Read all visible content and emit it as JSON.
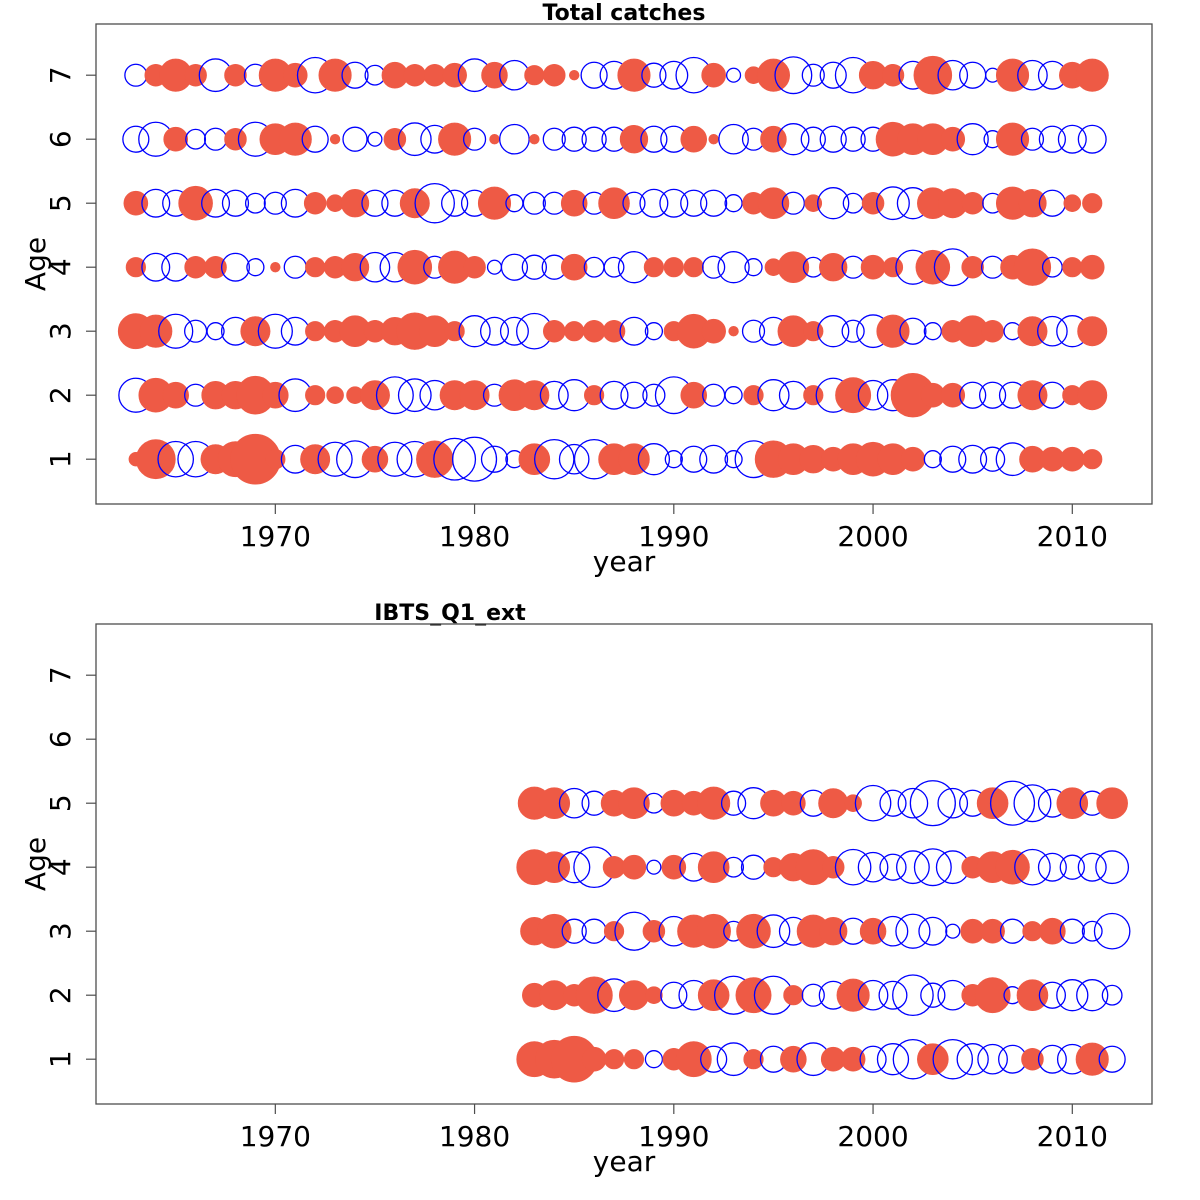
{
  "figure": {
    "legend": "none",
    "grid": false,
    "colors": {
      "positive_fill": "#ee5a45",
      "negative_stroke": "#0000ff",
      "frame": "#4d4d4d"
    }
  },
  "chart_data": [
    {
      "type": "scatter",
      "title": "Total catches",
      "xlabel": "year",
      "ylabel": "Age",
      "xlim": [
        1961,
        2014
      ],
      "ylim": [
        0.3,
        7.8
      ],
      "x_ticks": [
        1970,
        1980,
        1990,
        2000,
        2010
      ],
      "y_ticks": [
        1,
        2,
        3,
        4,
        5,
        6,
        7
      ],
      "years": [
        1963,
        1964,
        1965,
        1966,
        1967,
        1968,
        1969,
        1970,
        1971,
        1972,
        1973,
        1974,
        1975,
        1976,
        1977,
        1978,
        1979,
        1980,
        1981,
        1982,
        1983,
        1984,
        1985,
        1986,
        1987,
        1988,
        1989,
        1990,
        1991,
        1992,
        1993,
        1994,
        1995,
        1996,
        1997,
        1998,
        1999,
        2000,
        2001,
        2002,
        2003,
        2004,
        2005,
        2006,
        2007,
        2008,
        2009,
        2010,
        2011
      ],
      "series": [
        {
          "age": 1,
          "residuals": [
            0.2,
            1.6,
            -1.3,
            -1.3,
            0.9,
            1.3,
            2.6,
            0.4,
            -0.8,
            0.9,
            -1.2,
            -1.4,
            0.7,
            -1.2,
            -1.3,
            1.4,
            -1.8,
            -2.0,
            -0.7,
            -0.3,
            1.0,
            -1.6,
            -0.9,
            -1.6,
            1.0,
            1.0,
            -1.0,
            -0.3,
            -0.7,
            -0.8,
            -0.3,
            -1.4,
            1.4,
            1.0,
            0.8,
            0.6,
            1.0,
            1.2,
            1.0,
            0.6,
            -0.3,
            -0.7,
            -0.8,
            -0.6,
            -1.1,
            0.7,
            0.6,
            0.6,
            0.4
          ]
        },
        {
          "age": 2,
          "residuals": [
            -1.2,
            1.2,
            0.7,
            -0.5,
            0.8,
            0.8,
            1.5,
            0.7,
            -1.1,
            0.4,
            0.3,
            0.3,
            0.9,
            -1.4,
            -1.1,
            -0.9,
            0.9,
            0.9,
            -0.5,
            1.0,
            0.9,
            -0.8,
            -1.0,
            0.4,
            -0.8,
            -0.7,
            -0.5,
            -1.4,
            0.7,
            -0.5,
            -0.3,
            0.4,
            -1.0,
            -0.8,
            0.4,
            -1.2,
            1.3,
            -0.9,
            -1.0,
            2.0,
            0.6,
            0.6,
            -0.7,
            -0.7,
            -0.7,
            0.9,
            -0.7,
            0.4,
            0.9
          ]
        },
        {
          "age": 3,
          "residuals": [
            1.3,
            1.1,
            -1.2,
            -0.5,
            -0.3,
            -0.8,
            0.9,
            -1.2,
            -0.8,
            0.4,
            0.5,
            1.0,
            0.5,
            0.8,
            1.4,
            1.0,
            0.4,
            -1.0,
            -0.8,
            -0.8,
            -1.3,
            0.5,
            0.4,
            0.5,
            0.5,
            -0.8,
            -0.3,
            0.4,
            1.2,
            0.6,
            0.1,
            -0.5,
            -0.8,
            1.0,
            0.4,
            -1.0,
            -0.5,
            -1.1,
            1.1,
            -0.7,
            -0.3,
            0.5,
            1.0,
            0.5,
            -0.3,
            0.9,
            -0.9,
            -1.0,
            0.9
          ]
        },
        {
          "age": 4,
          "residuals": [
            0.4,
            -0.8,
            -0.8,
            0.5,
            0.5,
            -0.8,
            -0.3,
            0.1,
            -0.5,
            0.4,
            0.5,
            0.8,
            -0.9,
            -0.9,
            1.2,
            -0.5,
            1.1,
            0.5,
            -0.2,
            -0.7,
            -0.6,
            -0.6,
            0.7,
            -0.4,
            -0.4,
            -1.0,
            0.4,
            0.4,
            0.4,
            -0.5,
            -1.0,
            -0.3,
            0.3,
            1.0,
            -0.4,
            0.8,
            -0.5,
            0.6,
            0.4,
            -1.2,
            1.2,
            -1.4,
            0.5,
            -0.5,
            0.6,
            1.4,
            -0.4,
            0.4,
            0.6
          ]
        },
        {
          "age": 5,
          "residuals": [
            0.6,
            -0.8,
            -0.7,
            1.2,
            -0.8,
            -0.7,
            -0.4,
            -0.5,
            -0.8,
            0.5,
            0.3,
            0.8,
            -0.7,
            -0.7,
            0.9,
            -1.6,
            -0.7,
            -0.7,
            1.1,
            -0.3,
            -0.5,
            -0.5,
            0.7,
            -0.5,
            1.0,
            -0.5,
            -0.8,
            -0.8,
            -0.7,
            -0.7,
            -0.3,
            0.5,
            1.0,
            -0.5,
            0.3,
            -1.0,
            -0.4,
            0.5,
            -1.1,
            -1.0,
            1.0,
            0.9,
            0.5,
            -0.4,
            1.1,
            0.8,
            -0.7,
            0.3,
            0.4
          ]
        },
        {
          "age": 6,
          "residuals": [
            -0.7,
            -1.2,
            0.6,
            -0.4,
            -0.5,
            0.5,
            -1.2,
            1.0,
            1.1,
            -0.7,
            0.1,
            -0.6,
            -0.2,
            0.5,
            -1.1,
            -0.8,
            1.1,
            -0.5,
            0.1,
            -0.9,
            0.1,
            -0.5,
            -0.6,
            -0.6,
            -0.6,
            0.8,
            -0.7,
            -0.7,
            0.7,
            0.1,
            -0.9,
            -0.5,
            0.7,
            -1.0,
            -0.6,
            -0.7,
            -0.6,
            -0.6,
            1.2,
            1.0,
            1.0,
            0.6,
            -1.0,
            -0.3,
            1.1,
            -0.5,
            -0.7,
            -0.8,
            -0.8
          ]
        },
        {
          "age": 7,
          "residuals": [
            -0.5,
            0.5,
            1.1,
            0.5,
            -1.1,
            0.5,
            -0.5,
            1.1,
            0.6,
            -1.3,
            1.1,
            -0.7,
            -0.4,
            0.7,
            0.5,
            0.5,
            0.6,
            -1.1,
            0.7,
            -0.9,
            0.4,
            0.5,
            0.1,
            -0.7,
            -0.8,
            1.1,
            -0.6,
            -0.8,
            -1.3,
            0.6,
            -0.2,
            0.3,
            1.1,
            -1.4,
            -0.5,
            -0.7,
            -1.3,
            0.8,
            0.5,
            -0.8,
            1.5,
            -0.9,
            -0.7,
            -0.2,
            1.1,
            -0.9,
            -0.8,
            0.7,
            1.1
          ]
        }
      ]
    },
    {
      "type": "scatter",
      "title": "IBTS_Q1_ext",
      "xlabel": "year",
      "ylabel": "Age",
      "xlim": [
        1961,
        2014
      ],
      "ylim": [
        0.3,
        7.8
      ],
      "x_ticks": [
        1970,
        1980,
        1990,
        2000,
        2010
      ],
      "y_ticks": [
        1,
        2,
        3,
        4,
        5,
        6,
        7
      ],
      "years": [
        1983,
        1984,
        1985,
        1986,
        1987,
        1988,
        1989,
        1990,
        1991,
        1992,
        1993,
        1994,
        1995,
        1996,
        1997,
        1998,
        1999,
        2000,
        2001,
        2002,
        2003,
        2004,
        2005,
        2006,
        2007,
        2008,
        2009,
        2010,
        2011,
        2012
      ],
      "series": [
        {
          "age": 1,
          "residuals": [
            1.3,
            1.5,
            2.2,
            0.6,
            0.4,
            0.4,
            -0.3,
            0.5,
            1.3,
            -0.7,
            -1.1,
            0.4,
            -0.7,
            0.7,
            -1.1,
            0.6,
            0.6,
            -0.7,
            -1.0,
            -1.6,
            1.0,
            -1.6,
            -1.0,
            -0.9,
            -0.8,
            0.5,
            -0.8,
            -0.9,
            1.1,
            -0.7
          ]
        },
        {
          "age": 2,
          "residuals": [
            0.6,
            0.9,
            0.5,
            1.4,
            -1.1,
            0.9,
            0.3,
            -0.7,
            -0.9,
            1.0,
            -1.5,
            1.3,
            -1.5,
            0.4,
            -0.5,
            -0.8,
            1.1,
            -0.9,
            -0.8,
            -1.7,
            -0.6,
            -0.9,
            0.5,
            1.3,
            -0.3,
            1.0,
            -0.7,
            -1.0,
            -1.0,
            -0.4
          ]
        },
        {
          "age": 3,
          "residuals": [
            0.8,
            1.2,
            -0.6,
            -0.6,
            0.4,
            -1.5,
            0.5,
            -0.9,
            1.1,
            1.2,
            -0.4,
            1.2,
            -1.1,
            -0.8,
            1.1,
            0.8,
            -0.7,
            0.7,
            -0.9,
            -1.2,
            -0.8,
            -0.2,
            0.6,
            0.6,
            -0.6,
            0.4,
            0.7,
            -0.6,
            -0.4,
            -1.3
          ]
        },
        {
          "age": 4,
          "residuals": [
            1.3,
            1.0,
            -1.0,
            -1.7,
            0.5,
            0.6,
            -0.2,
            0.6,
            -0.8,
            1.0,
            -0.4,
            -0.6,
            0.4,
            0.8,
            1.3,
            0.5,
            -1.3,
            -0.9,
            -0.7,
            -1.1,
            -1.4,
            -1.1,
            0.5,
            1.0,
            1.2,
            -1.3,
            -0.8,
            -0.6,
            -0.8,
            -1.1
          ]
        },
        {
          "age": 5,
          "residuals": [
            1.1,
            1.0,
            -0.9,
            -0.6,
            0.7,
            1.0,
            -0.4,
            0.7,
            0.6,
            1.1,
            -0.6,
            -1.0,
            0.7,
            0.6,
            -0.7,
            0.9,
            0.3,
            -1.3,
            -0.7,
            -0.9,
            -2.1,
            -0.9,
            -0.7,
            1.0,
            -2.0,
            -1.4,
            -0.8,
            1.0,
            -0.6,
            1.0
          ]
        }
      ]
    }
  ]
}
